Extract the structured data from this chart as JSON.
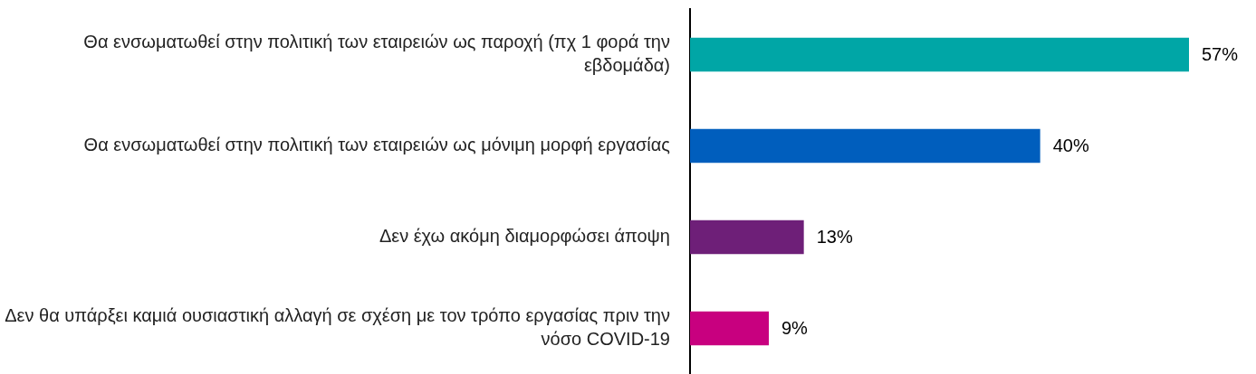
{
  "chart_data": {
    "type": "bar",
    "orientation": "horizontal",
    "categories": [
      "Θα ενσωματωθεί στην πολιτική των εταιρειών ως παροχή (πχ 1 φορά την εβδομάδα)",
      "Θα ενσωματωθεί στην πολιτική των εταιρειών ως μόνιμη μορφή εργασίας",
      "Δεν έχω ακόμη διαμορφώσει άποψη",
      "Δεν θα υπάρξει καμιά ουσιαστική αλλαγή σε σχέση με τον τρόπο εργασίας πριν την νόσο COVID-19"
    ],
    "values": [
      57,
      40,
      13,
      9
    ],
    "colors": [
      "#00a6a6",
      "#005ebd",
      "#6e1f78",
      "#c8007f"
    ],
    "value_labels": [
      "57%",
      "40%",
      "13%",
      "9%"
    ],
    "legend": false
  }
}
